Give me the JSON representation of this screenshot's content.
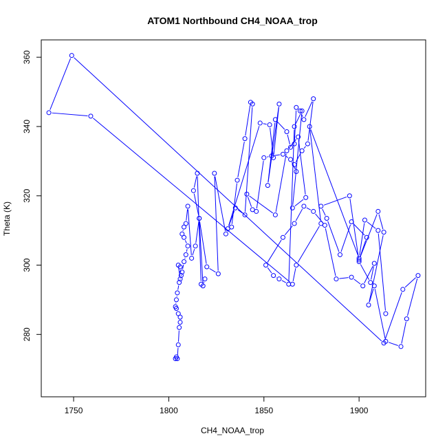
{
  "chart_data": {
    "type": "scatter",
    "title": "ATOM1 Northbound CH4_NOAA_trop",
    "xlabel": "CH4_NOAA_trop",
    "ylabel": "Theta (K)",
    "xlim": [
      1733,
      1935
    ],
    "ylim": [
      262,
      365
    ],
    "x_ticks": [
      1750,
      1800,
      1850,
      1900
    ],
    "y_ticks": [
      280,
      300,
      320,
      340,
      360
    ],
    "x_tick_labels": [
      "1750",
      "1800",
      "1850",
      "1900"
    ],
    "y_tick_labels": [
      "280",
      "300",
      "320",
      "340",
      "360"
    ],
    "series": [
      {
        "name": "CH4_NOAA_trop",
        "style": "b",
        "color": "#0000ff",
        "x": [
          1804,
          1803.5,
          1804.5,
          1805,
          1805.5,
          1806,
          1806,
          1805,
          1804,
          1803.5,
          1804,
          1804.5,
          1805.5,
          1806.5,
          1806,
          1805,
          1806,
          1807,
          1808,
          1809,
          1810,
          1808,
          1807,
          1808,
          1809,
          1810,
          1812,
          1814,
          1816,
          1813,
          1815,
          1817,
          1819,
          1818,
          1816,
          1820,
          1826,
          1824,
          1830,
          1833,
          1836,
          1840,
          1843,
          1844,
          1840,
          1835,
          1831,
          1848,
          1853,
          1855,
          1858,
          1852,
          1856,
          1862,
          1864,
          1866,
          1867,
          1869,
          1871,
          1876,
          1873,
          1870,
          1866,
          1867,
          1864,
          1860,
          1854,
          1850,
          1846,
          1844,
          1841,
          1856,
          1862,
          1868,
          1872,
          1865,
          1870,
          1866,
          1863,
          1858,
          1855,
          1851,
          1860,
          1866,
          1871,
          1876,
          1882,
          1888,
          1896,
          1902,
          1908,
          1906,
          1900,
          1895,
          1880,
          1883,
          1890,
          1896,
          1904,
          1900,
          1910,
          1913,
          1905,
          1908,
          1914,
          1922,
          1925,
          1931,
          1923,
          1913,
          1749,
          1737,
          1759,
          1865,
          1867,
          1880,
          1874,
          1900,
          1903,
          1910,
          1914
        ],
        "y": [
          273.5,
          273,
          273,
          277,
          282,
          283.5,
          285,
          286,
          287.5,
          288,
          290,
          292,
          295,
          297,
          299.5,
          300,
          296,
          298,
          301,
          303,
          305.5,
          308,
          309,
          311,
          312,
          317,
          302,
          305.5,
          313.5,
          321.5,
          326.5,
          294.5,
          296,
          294,
          313.5,
          299.5,
          297.5,
          326.5,
          309,
          311,
          324.5,
          336.5,
          347,
          346.5,
          314.5,
          316.5,
          310.5,
          341,
          340.5,
          331,
          346.5,
          323,
          342,
          338.5,
          334,
          335,
          345.5,
          344.5,
          342,
          348,
          335,
          333,
          329,
          327,
          330.5,
          332,
          331.5,
          331,
          315.5,
          316,
          320.5,
          314.5,
          333,
          337,
          319.5,
          316.5,
          344.5,
          340,
          294.5,
          296,
          297,
          300,
          308,
          312,
          317,
          315.5,
          311.5,
          296,
          296.5,
          294,
          300.5,
          295,
          301,
          320,
          317,
          313.5,
          303,
          312.5,
          308,
          301.5,
          315.5,
          309.5,
          288.5,
          294,
          278,
          276.5,
          284.5,
          297,
          293,
          277.5,
          360.5,
          344,
          343,
          294.5,
          300,
          312,
          340,
          302,
          313,
          310,
          286
        ]
      }
    ]
  }
}
